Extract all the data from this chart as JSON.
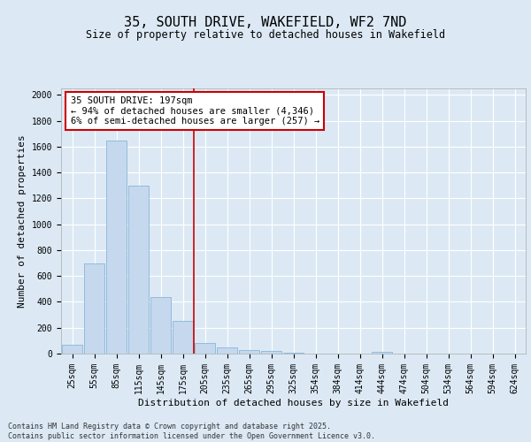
{
  "title": "35, SOUTH DRIVE, WAKEFIELD, WF2 7ND",
  "subtitle": "Size of property relative to detached houses in Wakefield",
  "xlabel": "Distribution of detached houses by size in Wakefield",
  "ylabel": "Number of detached properties",
  "categories": [
    "25sqm",
    "55sqm",
    "85sqm",
    "115sqm",
    "145sqm",
    "175sqm",
    "205sqm",
    "235sqm",
    "265sqm",
    "295sqm",
    "325sqm",
    "354sqm",
    "384sqm",
    "414sqm",
    "444sqm",
    "474sqm",
    "504sqm",
    "534sqm",
    "564sqm",
    "594sqm",
    "624sqm"
  ],
  "values": [
    65,
    700,
    1650,
    1300,
    440,
    255,
    85,
    50,
    30,
    20,
    10,
    0,
    0,
    0,
    15,
    0,
    0,
    0,
    0,
    0,
    0
  ],
  "bar_color": "#c5d8ed",
  "bar_edge_color": "#7aadd4",
  "vline_index": 6,
  "vline_color": "#cc0000",
  "annotation_text": "35 SOUTH DRIVE: 197sqm\n← 94% of detached houses are smaller (4,346)\n6% of semi-detached houses are larger (257) →",
  "annotation_box_color": "#ffffff",
  "annotation_box_edge_color": "#cc0000",
  "ylim": [
    0,
    2050
  ],
  "yticks": [
    0,
    200,
    400,
    600,
    800,
    1000,
    1200,
    1400,
    1600,
    1800,
    2000
  ],
  "background_color": "#dce9f5",
  "plot_background_color": "#dce9f5",
  "grid_color": "#ffffff",
  "footer": "Contains HM Land Registry data © Crown copyright and database right 2025.\nContains public sector information licensed under the Open Government Licence v3.0.",
  "title_fontsize": 11,
  "subtitle_fontsize": 8.5,
  "xlabel_fontsize": 8,
  "ylabel_fontsize": 8,
  "tick_fontsize": 7,
  "annotation_fontsize": 7.5,
  "footer_fontsize": 6
}
